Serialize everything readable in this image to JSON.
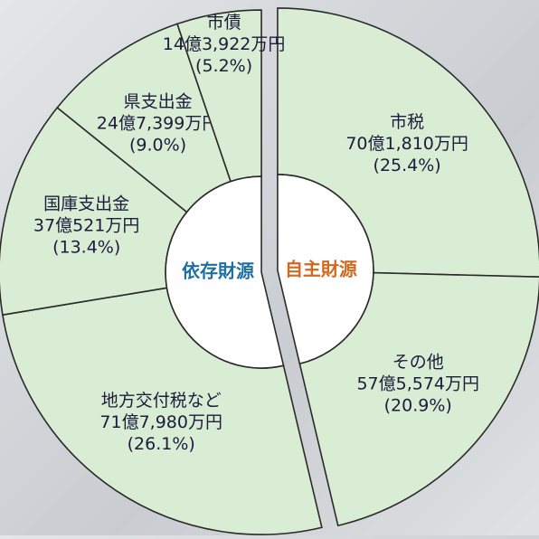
{
  "chart_data": {
    "type": "pie",
    "wedge_color": "#d9ecd4",
    "series": [
      {
        "name": "自主財源",
        "color": "#d2691e",
        "categories": [
          "市税",
          "その他"
        ],
        "amounts": [
          "70億1,810万円",
          "57億5,574万円"
        ],
        "values": [
          25.4,
          20.9
        ],
        "value_labels": [
          "(25.4%)",
          "(20.9%)"
        ]
      },
      {
        "name": "依存財源",
        "color": "#1f6fa3",
        "categories": [
          "地方交付税など",
          "国庫支出金",
          "県支出金",
          "市債"
        ],
        "amounts": [
          "71億7,980万円",
          "37億521万円",
          "24億7,399万円",
          "14億3,922万円"
        ],
        "values": [
          26.1,
          13.4,
          9.0,
          5.2
        ],
        "value_labels": [
          "(26.1%)",
          "(13.4%)",
          "(9.0%)",
          "(5.2%)"
        ]
      }
    ]
  }
}
